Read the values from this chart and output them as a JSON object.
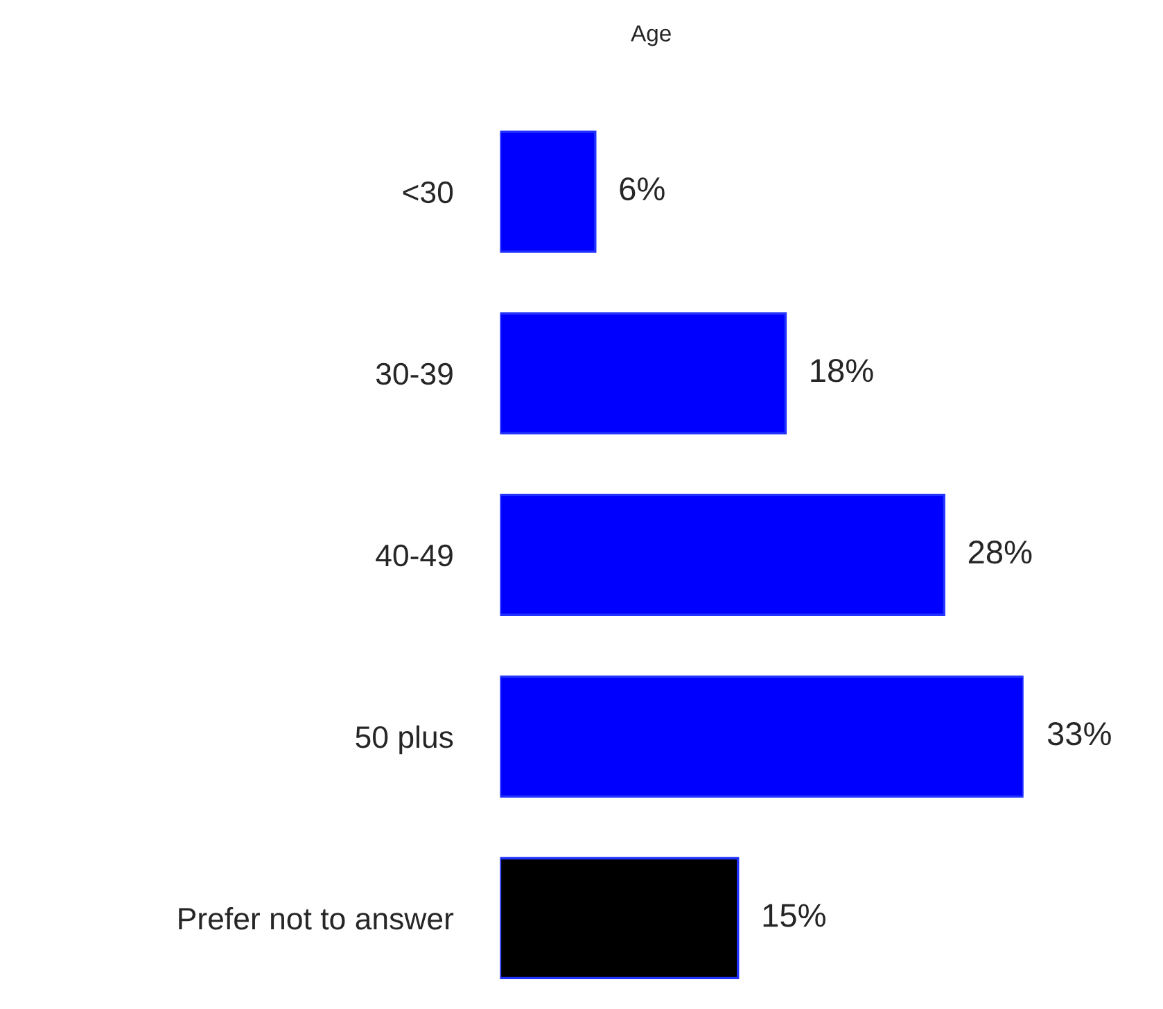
{
  "chart_data": {
    "type": "bar",
    "orientation": "horizontal",
    "title": "Age",
    "categories": [
      "<30",
      "30-39",
      "40-49",
      "50 plus",
      "Prefer not to answer"
    ],
    "values": [
      6,
      18,
      28,
      33,
      15
    ],
    "colors": [
      "#0000ff",
      "#0000ff",
      "#0000ff",
      "#0000ff",
      "#000000"
    ],
    "value_labels": [
      "6%",
      "18%",
      "28%",
      "33%",
      "15%"
    ],
    "grid": false,
    "legend": false
  }
}
